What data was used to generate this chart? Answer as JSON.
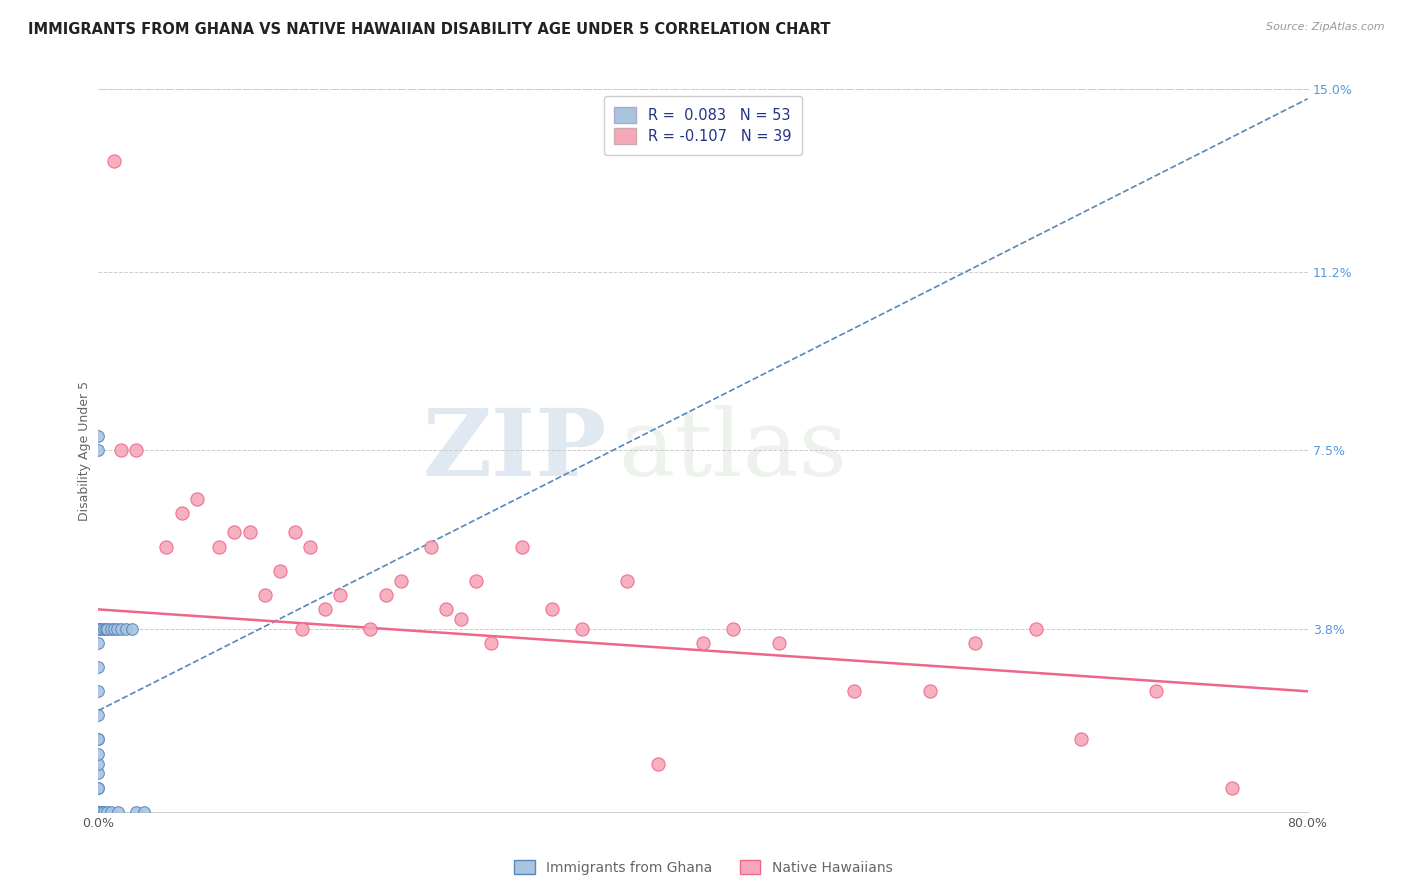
{
  "title": "IMMIGRANTS FROM GHANA VS NATIVE HAWAIIAN DISABILITY AGE UNDER 5 CORRELATION CHART",
  "source": "Source: ZipAtlas.com",
  "ylabel": "Disability Age Under 5",
  "right_yticks": [
    0.0,
    3.8,
    7.5,
    11.2,
    15.0
  ],
  "right_yticklabels": [
    "",
    "3.8%",
    "7.5%",
    "11.2%",
    "15.0%"
  ],
  "xlim": [
    0.0,
    80.0
  ],
  "ylim": [
    0.0,
    15.0
  ],
  "legend_label1": "Immigrants from Ghana",
  "legend_label2": "Native Hawaiians",
  "r1": 0.083,
  "n1": 53,
  "r2": -0.107,
  "n2": 39,
  "color_blue": "#aac4e0",
  "color_pink": "#f5a8ba",
  "trend_blue": "#5588bb",
  "trend_pink": "#ee6688",
  "watermark_zip": "ZIP",
  "watermark_atlas": "atlas",
  "ghana_x": [
    0.0,
    0.0,
    0.0,
    0.0,
    0.0,
    0.0,
    0.0,
    0.0,
    0.0,
    0.0,
    0.0,
    0.0,
    0.0,
    0.0,
    0.0,
    0.0,
    0.0,
    0.0,
    0.0,
    0.0,
    0.0,
    0.0,
    0.0,
    0.0,
    0.0,
    0.0,
    0.0,
    0.0,
    0.0,
    0.0,
    0.0,
    0.0,
    0.0,
    0.0,
    0.0,
    0.2,
    0.2,
    0.2,
    0.4,
    0.4,
    0.5,
    0.6,
    0.6,
    0.8,
    0.8,
    1.0,
    1.2,
    1.3,
    1.5,
    1.8,
    2.2,
    2.5,
    3.0
  ],
  "ghana_y": [
    0.0,
    0.0,
    0.0,
    0.0,
    0.0,
    0.0,
    0.0,
    0.0,
    0.0,
    0.0,
    0.0,
    0.0,
    0.0,
    0.0,
    0.0,
    0.0,
    0.5,
    0.5,
    0.8,
    1.0,
    1.2,
    1.5,
    1.5,
    2.0,
    2.5,
    3.0,
    3.5,
    3.8,
    3.8,
    3.8,
    3.8,
    3.8,
    3.8,
    7.5,
    7.8,
    0.0,
    0.0,
    3.8,
    0.0,
    3.8,
    3.8,
    0.0,
    3.8,
    0.0,
    3.8,
    3.8,
    3.8,
    0.0,
    3.8,
    3.8,
    3.8,
    0.0,
    0.0
  ],
  "hawaiian_x": [
    1.0,
    1.5,
    2.5,
    4.5,
    5.5,
    6.5,
    8.0,
    9.0,
    10.0,
    11.0,
    12.0,
    13.0,
    13.5,
    14.0,
    15.0,
    16.0,
    18.0,
    19.0,
    20.0,
    22.0,
    23.0,
    24.0,
    25.0,
    26.0,
    28.0,
    30.0,
    32.0,
    35.0,
    37.0,
    40.0,
    42.0,
    45.0,
    50.0,
    55.0,
    58.0,
    62.0,
    65.0,
    70.0,
    75.0
  ],
  "hawaiian_y": [
    13.5,
    7.5,
    7.5,
    5.5,
    6.2,
    6.5,
    5.5,
    5.8,
    5.8,
    4.5,
    5.0,
    5.8,
    3.8,
    5.5,
    4.2,
    4.5,
    3.8,
    4.5,
    4.8,
    5.5,
    4.2,
    4.0,
    4.8,
    3.5,
    5.5,
    4.2,
    3.8,
    4.8,
    1.0,
    3.5,
    3.8,
    3.5,
    2.5,
    2.5,
    3.5,
    3.8,
    1.5,
    2.5,
    0.5
  ],
  "title_fontsize": 10.5,
  "axis_label_fontsize": 9,
  "tick_fontsize": 9,
  "legend_fontsize": 10,
  "trend_blue_start_y": 2.1,
  "trend_blue_end_y": 14.8,
  "trend_pink_start_y": 4.2,
  "trend_pink_end_y": 2.5
}
